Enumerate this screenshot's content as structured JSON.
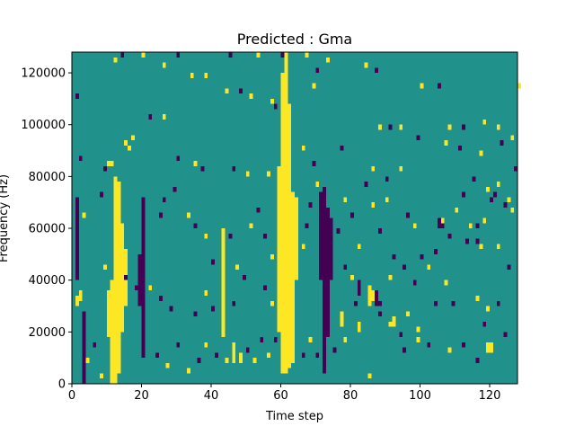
{
  "chart_data": {
    "type": "heatmap",
    "title": "Predicted : Gma",
    "xlabel": "Time step",
    "ylabel": "Frequency (Hz)",
    "xlim": [
      0,
      128
    ],
    "ylim": [
      0,
      128000
    ],
    "x_ticks": [
      0,
      20,
      40,
      60,
      80,
      100,
      120
    ],
    "x_tick_labels": [
      "0",
      "20",
      "40",
      "60",
      "80",
      "100",
      "120"
    ],
    "y_ticks": [
      0,
      20000,
      40000,
      60000,
      80000,
      100000,
      120000
    ],
    "y_tick_labels": [
      "0",
      "20000",
      "40000",
      "60000",
      "80000",
      "100000",
      "120000"
    ],
    "n_time_steps": 128,
    "n_frequency_bins": 64,
    "frequency_bin_width_hz": 2000,
    "value_levels": [
      0,
      1,
      2
    ],
    "colormap": {
      "0": "#440154",
      "1": "#21918c",
      "2": "#fde725"
    },
    "background_level": 1,
    "cells": [
      {
        "t": 11,
        "f0": 0,
        "f1": 40000,
        "v": 2
      },
      {
        "t": 12,
        "f0": 0,
        "f1": 80000,
        "v": 2
      },
      {
        "t": 13,
        "f0": 4000,
        "f1": 78000,
        "v": 2
      },
      {
        "t": 14,
        "f0": 20000,
        "f1": 62000,
        "v": 2
      },
      {
        "t": 10,
        "f0": 18000,
        "f1": 36000,
        "v": 2
      },
      {
        "t": 15,
        "f0": 30000,
        "f1": 52000,
        "v": 2
      },
      {
        "t": 60,
        "f0": 4000,
        "f1": 120000,
        "v": 2
      },
      {
        "t": 61,
        "f0": 4000,
        "f1": 128000,
        "v": 2
      },
      {
        "t": 62,
        "f0": 6000,
        "f1": 108000,
        "v": 2
      },
      {
        "t": 63,
        "f0": 8000,
        "f1": 74000,
        "v": 2
      },
      {
        "t": 59,
        "f0": 20000,
        "f1": 84000,
        "v": 2
      },
      {
        "t": 64,
        "f0": 40000,
        "f1": 72000,
        "v": 2
      },
      {
        "t": 43,
        "f0": 18000,
        "f1": 60000,
        "v": 2
      },
      {
        "t": 20,
        "f0": 10000,
        "f1": 72000,
        "v": 0
      },
      {
        "t": 19,
        "f0": 30000,
        "f1": 50000,
        "v": 0
      },
      {
        "t": 72,
        "f0": 4000,
        "f1": 76000,
        "v": 0
      },
      {
        "t": 73,
        "f0": 18000,
        "f1": 68000,
        "v": 0
      },
      {
        "t": 74,
        "f0": 40000,
        "f1": 64000,
        "v": 0
      },
      {
        "t": 71,
        "f0": 40000,
        "f1": 74000,
        "v": 0
      },
      {
        "t": 105,
        "f0": 60000,
        "f1": 64000,
        "v": 0
      },
      {
        "t": 106,
        "f0": 60000,
        "f1": 64000,
        "v": 0
      },
      {
        "t": 3,
        "f0": 0,
        "f1": 28000,
        "v": 0
      },
      {
        "t": 1,
        "f0": 40000,
        "f1": 72000,
        "v": 0
      },
      {
        "t": 82,
        "f0": 34000,
        "f1": 40000,
        "v": 0
      },
      {
        "t": 85,
        "f0": 30000,
        "f1": 38000,
        "v": 2
      },
      {
        "t": 86,
        "f0": 32000,
        "f1": 36000,
        "v": 2
      },
      {
        "t": 85,
        "f0": 30000,
        "f1": 34000,
        "v": 2
      },
      {
        "t": 87,
        "f0": 30000,
        "f1": 36000,
        "v": 0
      },
      {
        "t": 88,
        "f0": 30000,
        "f1": 32000,
        "v": 0
      },
      {
        "t": 119,
        "f0": 12000,
        "f1": 16000,
        "v": 2
      },
      {
        "t": 120,
        "f0": 12000,
        "f1": 16000,
        "v": 2
      },
      {
        "t": 77,
        "f0": 22000,
        "f1": 28000,
        "v": 2
      },
      {
        "t": 82,
        "f0": 20000,
        "f1": 24000,
        "v": 2
      },
      {
        "t": 92,
        "f0": 22000,
        "f1": 26000,
        "v": 2
      },
      {
        "t": 46,
        "f0": 8000,
        "f1": 16000,
        "v": 2
      },
      {
        "t": 48,
        "f0": 8000,
        "f1": 12000,
        "v": 2
      },
      {
        "t": 2,
        "f0": 32000,
        "f1": 36000,
        "v": 2
      },
      {
        "t": 1,
        "f0": 30000,
        "f1": 34000,
        "v": 2
      }
    ],
    "scatter_cells": [
      [
        3,
        64000,
        2
      ],
      [
        8,
        72000,
        0
      ],
      [
        10,
        84000,
        2
      ],
      [
        11,
        84000,
        2
      ],
      [
        15,
        92000,
        2
      ],
      [
        16,
        90000,
        2
      ],
      [
        17,
        94000,
        2
      ],
      [
        25,
        64000,
        0
      ],
      [
        26,
        70000,
        0
      ],
      [
        29,
        74000,
        0
      ],
      [
        33,
        64000,
        2
      ],
      [
        35,
        60000,
        0
      ],
      [
        38,
        56000,
        2
      ],
      [
        40,
        46000,
        0
      ],
      [
        45,
        56000,
        0
      ],
      [
        47,
        44000,
        2
      ],
      [
        49,
        40000,
        0
      ],
      [
        51,
        60000,
        2
      ],
      [
        53,
        66000,
        0
      ],
      [
        55,
        56000,
        0
      ],
      [
        57,
        48000,
        2
      ],
      [
        66,
        52000,
        2
      ],
      [
        67,
        60000,
        0
      ],
      [
        68,
        68000,
        0
      ],
      [
        69,
        84000,
        0
      ],
      [
        70,
        76000,
        2
      ],
      [
        76,
        58000,
        0
      ],
      [
        78,
        70000,
        2
      ],
      [
        80,
        64000,
        0
      ],
      [
        82,
        52000,
        2
      ],
      [
        84,
        76000,
        0
      ],
      [
        86,
        68000,
        2
      ],
      [
        88,
        58000,
        0
      ],
      [
        90,
        70000,
        2
      ],
      [
        92,
        48000,
        0
      ],
      [
        94,
        82000,
        2
      ],
      [
        96,
        64000,
        0
      ],
      [
        98,
        60000,
        2
      ],
      [
        100,
        48000,
        0
      ],
      [
        102,
        44000,
        2
      ],
      [
        104,
        50000,
        0
      ],
      [
        106,
        62000,
        2
      ],
      [
        108,
        56000,
        0
      ],
      [
        110,
        66000,
        2
      ],
      [
        112,
        72000,
        0
      ],
      [
        114,
        60000,
        2
      ],
      [
        116,
        54000,
        0
      ],
      [
        118,
        62000,
        2
      ],
      [
        120,
        70000,
        0
      ],
      [
        122,
        76000,
        2
      ],
      [
        124,
        68000,
        0
      ],
      [
        126,
        66000,
        2
      ],
      [
        127,
        82000,
        0
      ],
      [
        4,
        8000,
        2
      ],
      [
        6,
        14000,
        0
      ],
      [
        8,
        2000,
        2
      ],
      [
        24,
        10000,
        0
      ],
      [
        27,
        6000,
        2
      ],
      [
        30,
        14000,
        0
      ],
      [
        33,
        4000,
        2
      ],
      [
        36,
        8000,
        0
      ],
      [
        38,
        14000,
        2
      ],
      [
        41,
        10000,
        0
      ],
      [
        44,
        8000,
        2
      ],
      [
        50,
        12000,
        0
      ],
      [
        52,
        8000,
        2
      ],
      [
        54,
        16000,
        0
      ],
      [
        56,
        10000,
        2
      ],
      [
        58,
        16000,
        0
      ],
      [
        66,
        10000,
        0
      ],
      [
        68,
        16000,
        2
      ],
      [
        70,
        10000,
        0
      ],
      [
        75,
        12000,
        0
      ],
      [
        78,
        16000,
        2
      ],
      [
        85,
        2000,
        2
      ],
      [
        95,
        12000,
        0
      ],
      [
        99,
        16000,
        2
      ],
      [
        102,
        14000,
        0
      ],
      [
        108,
        12000,
        2
      ],
      [
        112,
        14000,
        0
      ],
      [
        116,
        8000,
        0
      ],
      [
        120,
        12000,
        2
      ],
      [
        124,
        18000,
        0
      ],
      [
        14,
        126000,
        0
      ],
      [
        20,
        126000,
        2
      ],
      [
        30,
        126000,
        0
      ],
      [
        45,
        126000,
        0
      ],
      [
        53,
        126000,
        2
      ],
      [
        60,
        126000,
        0
      ],
      [
        67,
        126000,
        2
      ],
      [
        70,
        120000,
        0
      ],
      [
        73,
        124000,
        2
      ],
      [
        84,
        122000,
        2
      ],
      [
        87,
        120000,
        0
      ],
      [
        12,
        124000,
        2
      ],
      [
        26,
        122000,
        2
      ],
      [
        34,
        118000,
        2
      ],
      [
        38,
        118000,
        2
      ],
      [
        44,
        112000,
        2
      ],
      [
        48,
        112000,
        0
      ],
      [
        51,
        110000,
        2
      ],
      [
        57,
        108000,
        2
      ],
      [
        58,
        106000,
        0
      ],
      [
        69,
        114000,
        2
      ],
      [
        100,
        114000,
        2
      ],
      [
        105,
        114000,
        0
      ],
      [
        128,
        114000,
        2
      ],
      [
        1,
        110000,
        0
      ],
      [
        22,
        102000,
        0
      ],
      [
        26,
        102000,
        2
      ],
      [
        88,
        98000,
        2
      ],
      [
        91,
        98000,
        0
      ],
      [
        94,
        98000,
        2
      ],
      [
        99,
        94000,
        0
      ],
      [
        108,
        98000,
        2
      ],
      [
        112,
        98000,
        0
      ],
      [
        118,
        100000,
        2
      ],
      [
        122,
        98000,
        2
      ],
      [
        126,
        94000,
        2
      ],
      [
        107,
        92000,
        2
      ],
      [
        111,
        90000,
        0
      ],
      [
        117,
        88000,
        2
      ],
      [
        123,
        92000,
        0
      ],
      [
        2,
        86000,
        0
      ],
      [
        9,
        82000,
        0
      ],
      [
        30,
        86000,
        0
      ],
      [
        35,
        84000,
        2
      ],
      [
        37,
        82000,
        0
      ],
      [
        46,
        82000,
        0
      ],
      [
        50,
        80000,
        2
      ],
      [
        56,
        80000,
        2
      ],
      [
        66,
        90000,
        2
      ],
      [
        77,
        90000,
        0
      ],
      [
        86,
        82000,
        2
      ],
      [
        90,
        78000,
        0
      ],
      [
        115,
        78000,
        0
      ],
      [
        119,
        74000,
        2
      ],
      [
        121,
        72000,
        0
      ],
      [
        125,
        70000,
        2
      ],
      [
        116,
        60000,
        0
      ],
      [
        113,
        54000,
        0
      ],
      [
        117,
        52000,
        2
      ],
      [
        122,
        52000,
        2
      ],
      [
        125,
        44000,
        0
      ],
      [
        107,
        38000,
        2
      ],
      [
        109,
        30000,
        0
      ],
      [
        116,
        32000,
        2
      ],
      [
        119,
        28000,
        2
      ],
      [
        122,
        30000,
        0
      ],
      [
        96,
        26000,
        2
      ],
      [
        104,
        30000,
        0
      ],
      [
        98,
        38000,
        0
      ],
      [
        91,
        40000,
        2
      ],
      [
        95,
        44000,
        0
      ],
      [
        9,
        44000,
        2
      ],
      [
        15,
        40000,
        0
      ],
      [
        18,
        36000,
        0
      ],
      [
        22,
        36000,
        2
      ],
      [
        25,
        32000,
        0
      ],
      [
        28,
        28000,
        0
      ],
      [
        35,
        26000,
        0
      ],
      [
        38,
        34000,
        2
      ],
      [
        40,
        28000,
        0
      ],
      [
        46,
        30000,
        0
      ],
      [
        55,
        36000,
        0
      ],
      [
        57,
        30000,
        2
      ],
      [
        78,
        44000,
        0
      ],
      [
        80,
        40000,
        2
      ],
      [
        81,
        30000,
        0
      ],
      [
        88,
        26000,
        0
      ],
      [
        91,
        22000,
        2
      ],
      [
        94,
        18000,
        0
      ],
      [
        99,
        20000,
        2
      ],
      [
        118,
        22000,
        0
      ]
    ]
  }
}
